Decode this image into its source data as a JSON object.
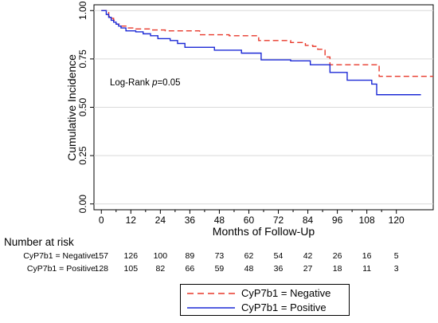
{
  "chart_data": {
    "type": "line",
    "title": "",
    "xlabel": "Months of Follow-Up",
    "ylabel": "Cumulative Incidence",
    "xlim": [
      -3,
      135
    ],
    "ylim": [
      -0.03,
      1.03
    ],
    "xticks": [
      "0",
      "12",
      "24",
      "36",
      "48",
      "60",
      "72",
      "84",
      "96",
      "108",
      "120"
    ],
    "xtick_minor": [
      6,
      18,
      30,
      42,
      54,
      66,
      78,
      90,
      102,
      114
    ],
    "yticks": [
      "0.00",
      "0.25",
      "0.50",
      "0.75",
      "1.00"
    ],
    "grid": "horizontal",
    "annotation": "Log-Rank p=0.05",
    "annotation_prefix": "Log-Rank ",
    "annotation_italic": "p",
    "annotation_suffix": "=0.05",
    "series": [
      {
        "name": "CyP7b1 = Negative",
        "color": "#e8392b",
        "dash": "dashed",
        "x": [
          0,
          2,
          3,
          4,
          5,
          6,
          8,
          10,
          14,
          20,
          26,
          40,
          52,
          64,
          77,
          83,
          86,
          88,
          91,
          93,
          104,
          113,
          135
        ],
        "y": [
          1.0,
          0.99,
          0.97,
          0.96,
          0.95,
          0.93,
          0.92,
          0.91,
          0.905,
          0.9,
          0.895,
          0.875,
          0.87,
          0.845,
          0.835,
          0.82,
          0.815,
          0.8,
          0.76,
          0.72,
          0.72,
          0.66,
          0.66
        ]
      },
      {
        "name": "CyP7b1 = Positive",
        "color": "#1c2ad6",
        "dash": "solid",
        "x": [
          0,
          2,
          3,
          4,
          5,
          6,
          7,
          8,
          10,
          14,
          17,
          20,
          23,
          28,
          31,
          34,
          46,
          57,
          65,
          77,
          85,
          93,
          100,
          110,
          112,
          130
        ],
        "y": [
          1.0,
          0.98,
          0.965,
          0.95,
          0.94,
          0.93,
          0.92,
          0.91,
          0.895,
          0.89,
          0.88,
          0.87,
          0.855,
          0.845,
          0.83,
          0.81,
          0.795,
          0.78,
          0.745,
          0.74,
          0.72,
          0.68,
          0.64,
          0.62,
          0.565,
          0.565
        ]
      }
    ],
    "legend": {
      "position": "bottom-center",
      "entries": [
        "CyP7b1 = Negative",
        "CyP7b1 = Positive"
      ]
    }
  },
  "risk_table": {
    "title": "Number at risk",
    "rows": [
      {
        "label": "CyP7b1 = Negative",
        "values": [
          "157",
          "126",
          "100",
          "89",
          "73",
          "62",
          "54",
          "42",
          "26",
          "16",
          "5"
        ]
      },
      {
        "label": "CyP7b1 = Positive",
        "values": [
          "128",
          "105",
          "82",
          "66",
          "59",
          "48",
          "36",
          "27",
          "18",
          "11",
          "3"
        ]
      }
    ]
  }
}
